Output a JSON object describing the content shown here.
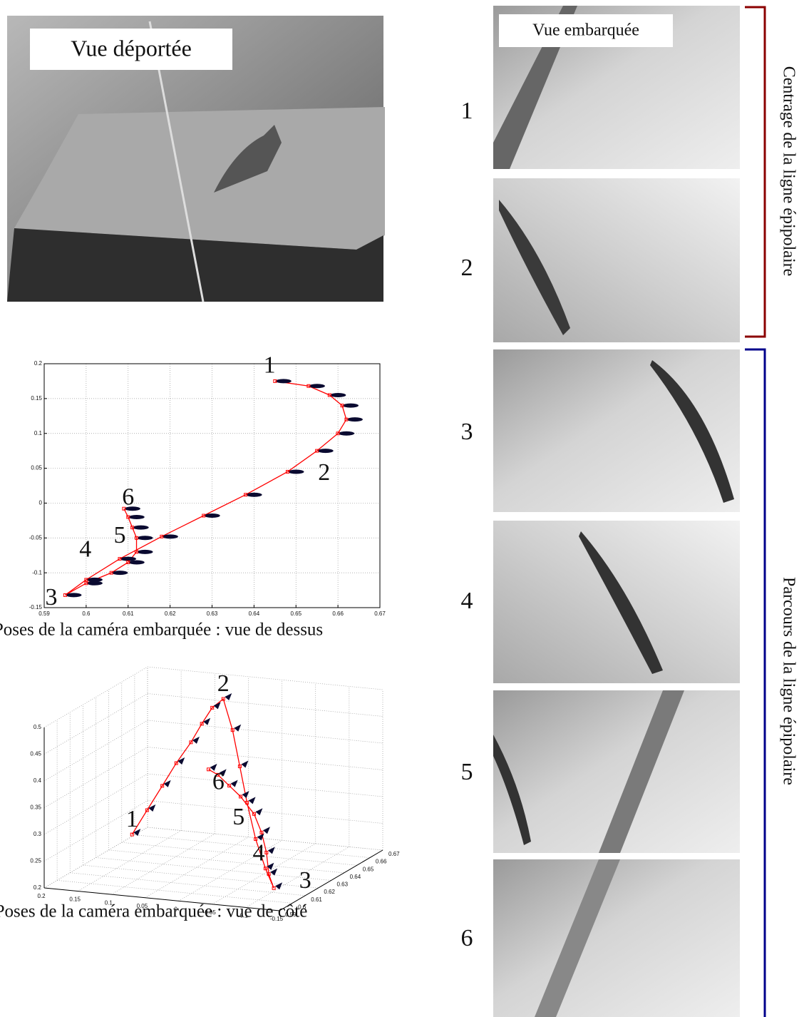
{
  "remote_view_label": "Vue déportée",
  "onboard_view_label": "Vue embarquée",
  "frame_numbers": [
    "1",
    "2",
    "3",
    "4",
    "5",
    "6"
  ],
  "bracket_labels": [
    "Centrage de la ligne épipolaire",
    "Parcours de la ligne épipolaire"
  ],
  "chart_data": [
    {
      "type": "trajectory",
      "caption": "Poses de la caméra embarquée : vue de dessus",
      "xlim": [
        0.59,
        0.67
      ],
      "ylim": [
        -0.15,
        0.2
      ],
      "xticks": [
        0.59,
        0.6,
        0.61,
        0.62,
        0.63,
        0.64,
        0.65,
        0.66,
        0.67
      ],
      "yticks": [
        -0.15,
        -0.1,
        -0.05,
        0,
        0.05,
        0.1,
        0.15,
        0.2
      ],
      "grid": true,
      "series": [
        {
          "color": "#ff0000",
          "x": [
            0.645,
            0.653,
            0.658,
            0.661,
            0.662,
            0.66,
            0.655,
            0.648,
            0.638,
            0.628,
            0.618,
            0.608,
            0.6,
            0.595,
            0.6,
            0.606,
            0.61,
            0.612,
            0.612,
            0.611,
            0.61,
            0.609
          ],
          "values": [
            0.175,
            0.168,
            0.155,
            0.14,
            0.12,
            0.1,
            0.075,
            0.045,
            0.012,
            -0.018,
            -0.048,
            -0.08,
            -0.11,
            -0.132,
            -0.115,
            -0.1,
            -0.085,
            -0.07,
            -0.05,
            -0.035,
            -0.02,
            -0.008
          ]
        }
      ],
      "annotations": [
        {
          "text": "1",
          "x": 0.6437,
          "y": 0.195
        },
        {
          "text": "2",
          "x": 0.6567,
          "y": 0.041
        },
        {
          "text": "3",
          "x": 0.5917,
          "y": -0.138
        },
        {
          "text": "4",
          "x": 0.5998,
          "y": -0.069
        },
        {
          "text": "5",
          "x": 0.608,
          "y": -0.049
        },
        {
          "text": "6",
          "x": 0.61,
          "y": 0.006
        }
      ]
    },
    {
      "type": "trajectory3d",
      "caption": "Poses de la caméra embarquée : vue de côté",
      "xlim": [
        0.2,
        -0.15
      ],
      "ylim": [
        0.59,
        0.67
      ],
      "zlim": [
        0.2,
        0.5
      ],
      "xticks": [
        0.2,
        0.15,
        0.1,
        0.05,
        0,
        -0.05,
        -0.1,
        -0.15
      ],
      "yticks": [
        0.59,
        0.6,
        0.61,
        0.62,
        0.63,
        0.64,
        0.65,
        0.66,
        0.67
      ],
      "zticks": [
        0.2,
        0.25,
        0.3,
        0.35,
        0.4,
        0.45,
        0.5
      ],
      "grid": true,
      "series": [
        {
          "color": "#ff0000",
          "x": [
            0.175,
            0.168,
            0.155,
            0.14,
            0.12,
            0.1,
            0.075,
            0.045,
            0.012,
            -0.018,
            -0.048,
            -0.08,
            -0.11,
            -0.132,
            -0.115,
            -0.1,
            -0.085,
            -0.07,
            -0.05,
            -0.035,
            -0.02,
            -0.008
          ],
          "y": [
            0.645,
            0.653,
            0.658,
            0.661,
            0.662,
            0.66,
            0.655,
            0.648,
            0.638,
            0.628,
            0.618,
            0.608,
            0.6,
            0.595,
            0.6,
            0.606,
            0.61,
            0.612,
            0.612,
            0.611,
            0.61,
            0.609
          ],
          "z": [
            0.225,
            0.26,
            0.3,
            0.34,
            0.38,
            0.42,
            0.46,
            0.49,
            0.45,
            0.4,
            0.35,
            0.3,
            0.26,
            0.233,
            0.25,
            0.28,
            0.31,
            0.34,
            0.37,
            0.39,
            0.41,
            0.42
          ]
        }
      ],
      "annotations": [
        {
          "text": "1",
          "x": 0.175,
          "y": 0.645,
          "z": 0.25
        },
        {
          "text": "2",
          "x": 0.045,
          "y": 0.648,
          "z": 0.515
        },
        {
          "text": "3",
          "x": -0.15,
          "y": 0.61,
          "z": 0.225
        },
        {
          "text": "4",
          "x": -0.1,
          "y": 0.6,
          "z": 0.284
        },
        {
          "text": "5",
          "x": -0.07,
          "y": 0.6,
          "z": 0.348
        },
        {
          "text": "6",
          "x": -0.04,
          "y": 0.6,
          "z": 0.41
        }
      ]
    }
  ]
}
